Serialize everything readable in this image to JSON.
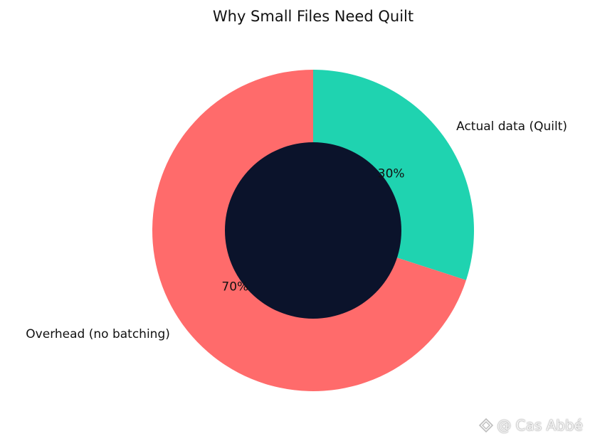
{
  "chart_data": {
    "type": "pie",
    "title": "Why Small Files Need Quilt",
    "donut": true,
    "start_angle_deg": 90,
    "direction": "clockwise",
    "slices": [
      {
        "label": "Actual data (Quilt)",
        "value": 30,
        "pct_label": "30%",
        "color": "#1fd3b0"
      },
      {
        "label": "Overhead (no batching)",
        "value": 70,
        "pct_label": "70%",
        "color": "#ff6b6b"
      }
    ],
    "center_color": "#0b132b"
  },
  "watermark": {
    "text": "@ Cas Abbé",
    "icon": "diamond-logo-icon"
  }
}
